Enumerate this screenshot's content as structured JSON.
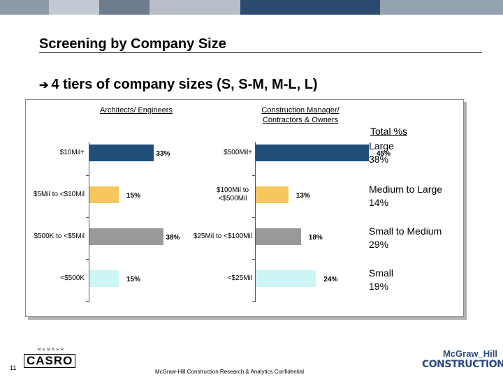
{
  "header": {
    "title": "Screening by Company Size",
    "colors": [
      "#8e9aa8",
      "#c2c9d2",
      "#6d7b8c",
      "#b7bec7",
      "#2b4b6e",
      "#94a1b0"
    ]
  },
  "bullet": {
    "icon": "arrow-right-icon",
    "text": "4 tiers of company sizes (S, S-M, M-L, L)"
  },
  "chart_data": [
    {
      "type": "bar",
      "orientation": "horizontal",
      "title": "Architects/ Engineers",
      "categories": [
        "$10Mil+",
        "$5Mil to <$10Mil",
        "$500K to <$5Mil",
        "<$500K"
      ],
      "values": [
        33,
        15,
        38,
        15
      ],
      "value_labels": [
        "33%",
        "15%",
        "38%",
        "15%"
      ],
      "colors": [
        "#1f4e79",
        "#f5c75c",
        "#999999",
        "#ccf5f5"
      ],
      "unit": "%"
    },
    {
      "type": "bar",
      "orientation": "horizontal",
      "title": "Construction Manager/ Contractors & Owners",
      "categories": [
        "$500Mil+",
        "$100Mil to <$500Mil",
        "$25Mil to <$100Mil",
        "<$25Mil"
      ],
      "values": [
        45,
        13,
        18,
        24
      ],
      "value_labels": [
        "45%",
        "13%",
        "18%",
        "24%"
      ],
      "colors": [
        "#1f4e79",
        "#f5c75c",
        "#999999",
        "#ccf5f5"
      ],
      "unit": "%"
    }
  ],
  "totals": {
    "heading": "Total %s",
    "items": [
      {
        "label": "Large",
        "value": "38%"
      },
      {
        "label": "Medium to Large",
        "value": "14%"
      },
      {
        "label": "Small to Medium",
        "value": "29%"
      },
      {
        "label": "Small",
        "value": "19%"
      }
    ]
  },
  "footer": {
    "page_number": "11",
    "confidential": "McGraw-Hill Construction Research & Analytics Confidential",
    "casro_small_top": "MEMBER",
    "casro_logo": "CASRO",
    "mh_line1": "McGraw_Hill",
    "mh_line2": "CONSTRUCTION"
  }
}
